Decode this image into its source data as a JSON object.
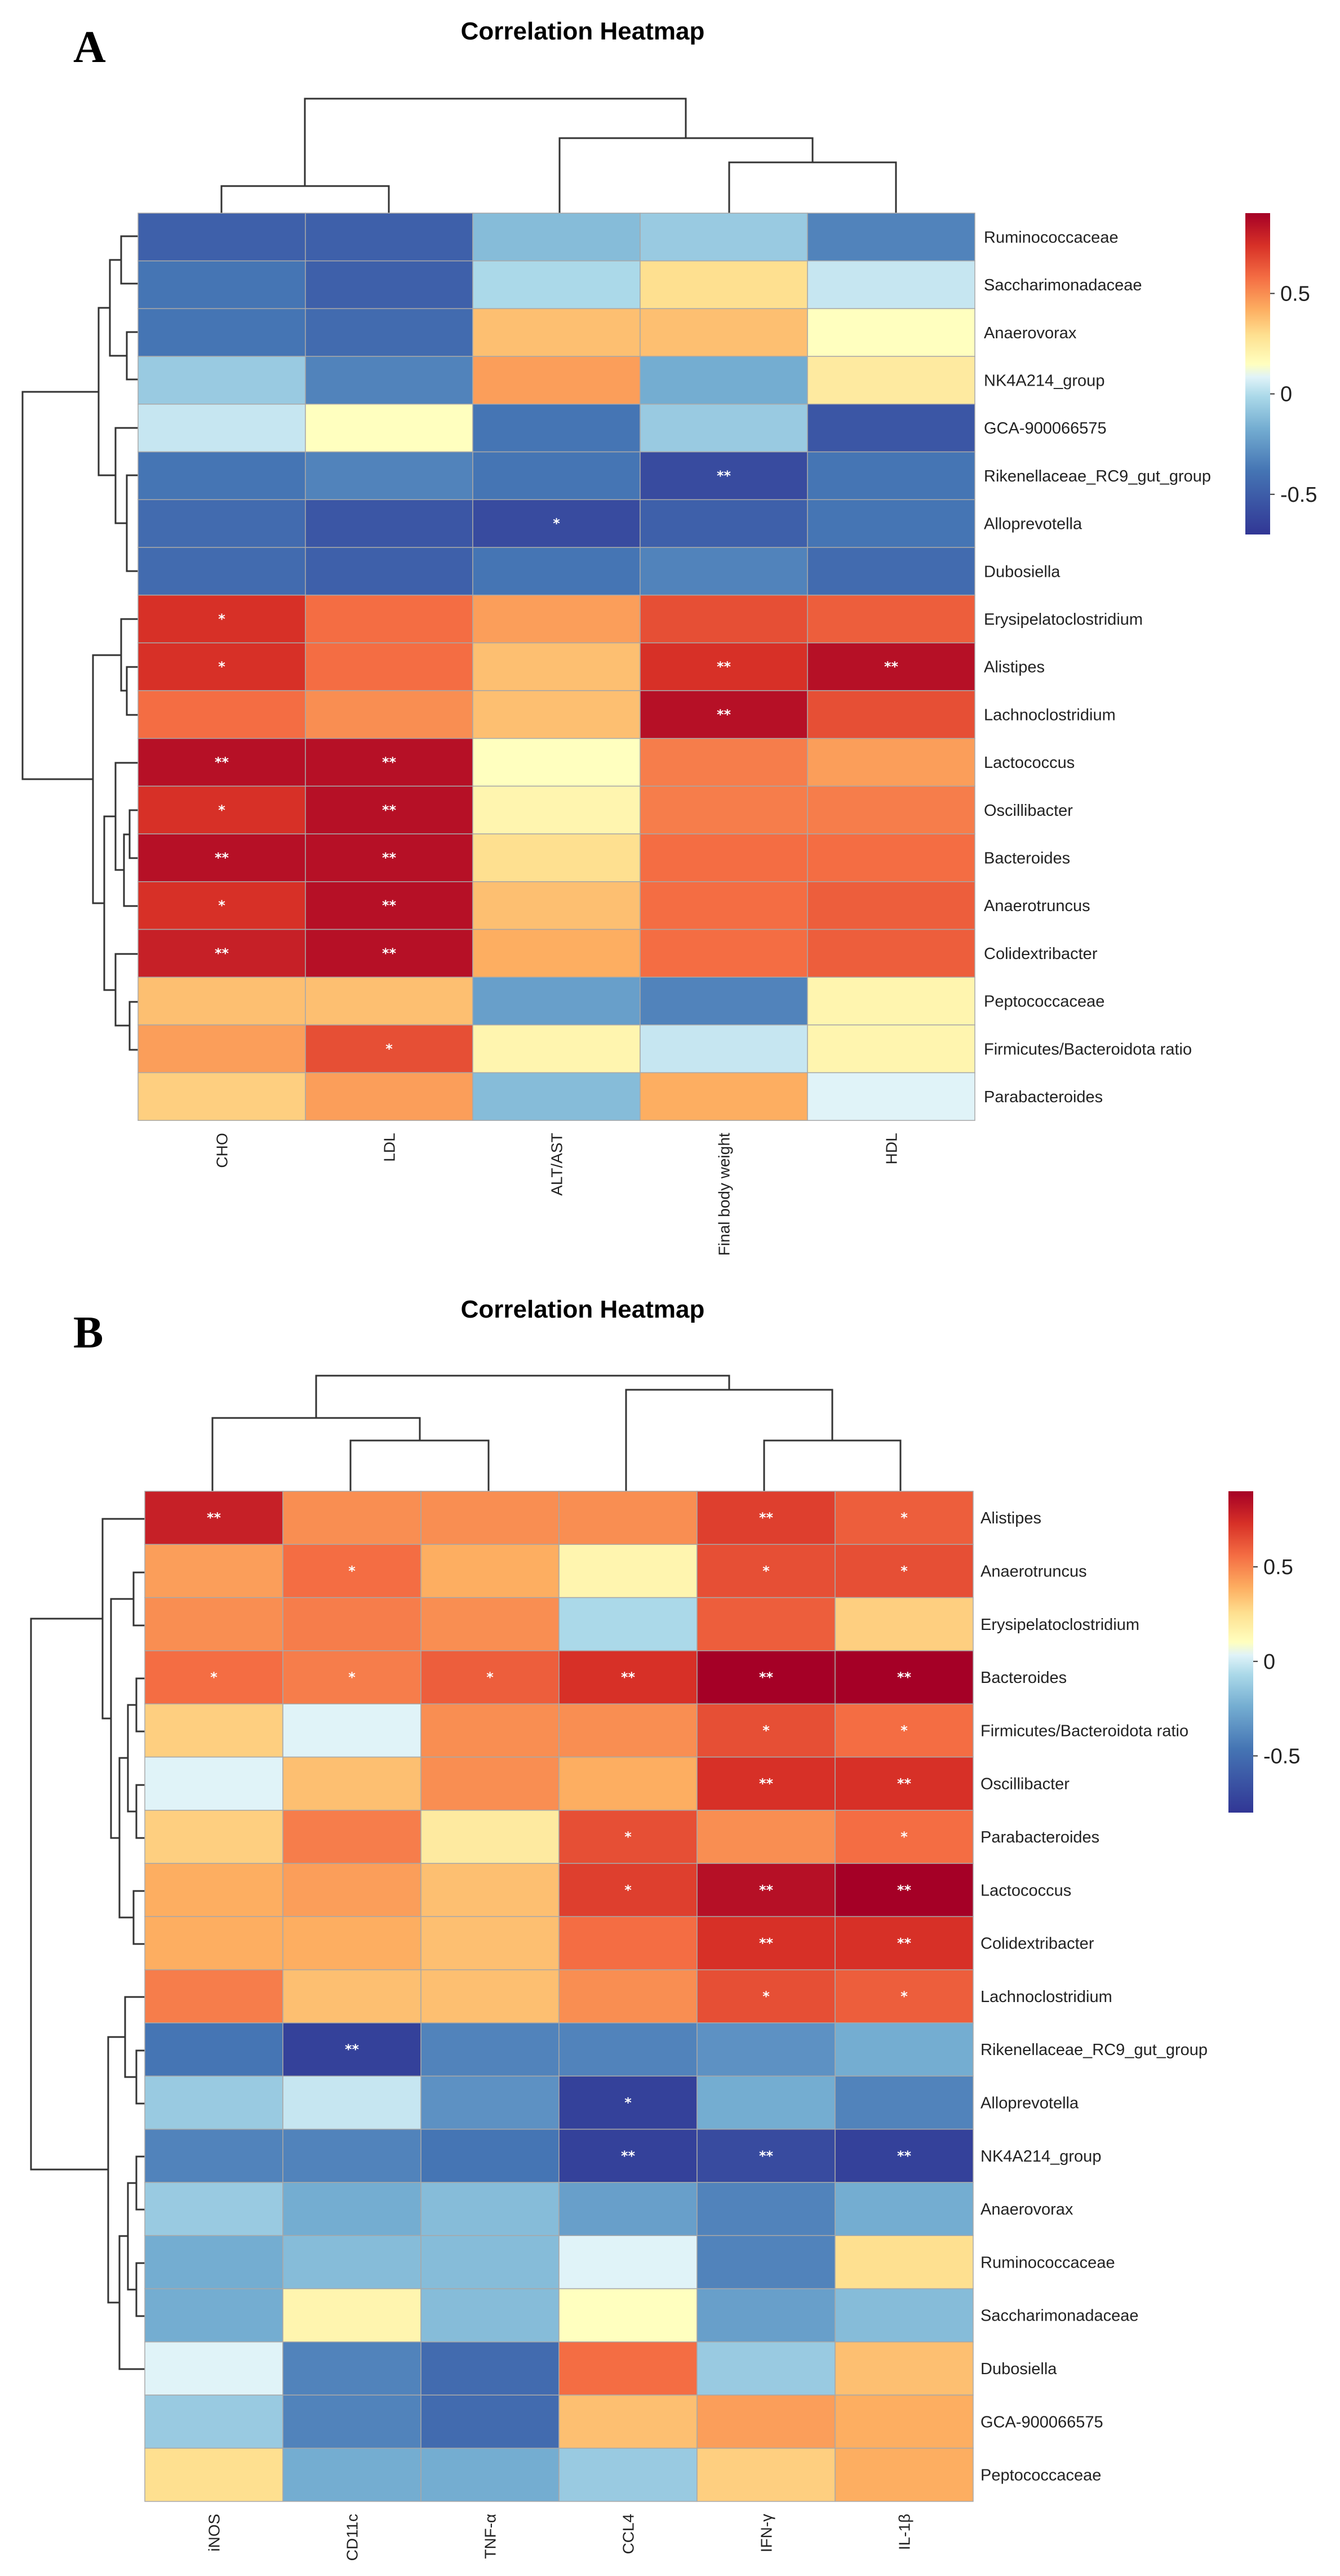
{
  "chart_data": [
    {
      "panel_label": "A",
      "type": "heatmap",
      "title": "Correlation Heatmap",
      "columns": [
        "CHO",
        "LDL",
        "ALT/AST",
        "Final body weight",
        "HDL"
      ],
      "rows": [
        "Ruminococcaceae",
        "Saccharimonadaceae",
        "Anaerovorax",
        "NK4A214_group",
        "GCA-900066575",
        "Rikenellaceae_RC9_gut_group",
        "Alloprevotella",
        "Dubosiella",
        "Erysipelatoclostridium",
        "Alistipes",
        "Lachnoclostridium",
        "Lactococcus",
        "Oscillibacter",
        "Bacteroides",
        "Anaerotruncus",
        "Colidextribacter",
        "Peptococcaceae",
        "Firmicutes/Bacteroidota ratio",
        "Parabacteroides"
      ],
      "values": [
        [
          -0.6,
          -0.6,
          -0.25,
          -0.2,
          -0.45
        ],
        [
          -0.5,
          -0.6,
          -0.15,
          0.2,
          -0.1
        ],
        [
          -0.5,
          -0.55,
          0.3,
          0.3,
          0.05
        ],
        [
          -0.2,
          -0.45,
          0.4,
          -0.3,
          0.15
        ],
        [
          -0.1,
          0.05,
          -0.5,
          -0.2,
          -0.65
        ],
        [
          -0.5,
          -0.45,
          -0.5,
          -0.7,
          -0.5
        ],
        [
          -0.55,
          -0.65,
          -0.7,
          -0.6,
          -0.5
        ],
        [
          -0.55,
          -0.6,
          -0.5,
          -0.45,
          -0.55
        ],
        [
          0.75,
          0.55,
          0.4,
          0.65,
          0.6
        ],
        [
          0.75,
          0.55,
          0.3,
          0.75,
          0.85
        ],
        [
          0.55,
          0.45,
          0.3,
          0.85,
          0.65
        ],
        [
          0.85,
          0.85,
          0.05,
          0.5,
          0.4
        ],
        [
          0.75,
          0.85,
          0.1,
          0.5,
          0.5
        ],
        [
          0.85,
          0.85,
          0.2,
          0.55,
          0.55
        ],
        [
          0.75,
          0.85,
          0.3,
          0.55,
          0.6
        ],
        [
          0.8,
          0.85,
          0.35,
          0.55,
          0.6
        ],
        [
          0.3,
          0.3,
          -0.35,
          -0.45,
          0.1
        ],
        [
          0.4,
          0.65,
          0.1,
          -0.1,
          0.1
        ],
        [
          0.25,
          0.4,
          -0.25,
          0.35,
          -0.05
        ]
      ],
      "significance": [
        [
          "",
          "",
          "",
          "",
          ""
        ],
        [
          "",
          "",
          "",
          "",
          ""
        ],
        [
          "",
          "",
          "",
          "",
          ""
        ],
        [
          "",
          "",
          "",
          "",
          ""
        ],
        [
          "",
          "",
          "",
          "",
          ""
        ],
        [
          "",
          "",
          "",
          "**",
          ""
        ],
        [
          "",
          "",
          "*",
          "",
          ""
        ],
        [
          "",
          "",
          "",
          "",
          ""
        ],
        [
          "*",
          "",
          "",
          "",
          ""
        ],
        [
          "*",
          "",
          "",
          "**",
          "**"
        ],
        [
          "",
          "",
          "",
          "**",
          ""
        ],
        [
          "**",
          "**",
          "",
          "",
          ""
        ],
        [
          "*",
          "**",
          "",
          "",
          ""
        ],
        [
          "**",
          "**",
          "",
          "",
          ""
        ],
        [
          "*",
          "**",
          "",
          "",
          ""
        ],
        [
          "**",
          "**",
          "",
          "",
          ""
        ],
        [
          "",
          "",
          "",
          "",
          ""
        ],
        [
          "",
          "*",
          "",
          "",
          ""
        ],
        [
          "",
          "",
          "",
          "",
          ""
        ]
      ],
      "legend": {
        "ticks": [
          0.5,
          0,
          -0.5
        ],
        "tick_labels": [
          "0.5",
          "0",
          "-0.5"
        ],
        "range": [
          -0.7,
          0.9
        ]
      }
    },
    {
      "panel_label": "B",
      "type": "heatmap",
      "title": "Correlation Heatmap",
      "columns": [
        "iNOS",
        "CD11c",
        "TNF-α",
        "CCL4",
        "IFN-γ",
        "IL-1β"
      ],
      "rows": [
        "Alistipes",
        "Anaerotruncus",
        "Erysipelatoclostridium",
        "Bacteroides",
        "Firmicutes/Bacteroidota ratio",
        "Oscillibacter",
        "Parabacteroides",
        "Lactococcus",
        "Colidextribacter",
        "Lachnoclostridium",
        "Rikenellaceae_RC9_gut_group",
        "Alloprevotella",
        "NK4A214_group",
        "Anaerovorax",
        "Ruminococcaceae",
        "Saccharimonadaceae",
        "Dubosiella",
        "GCA-900066575",
        "Peptococcaceae"
      ],
      "values": [
        [
          0.8,
          0.45,
          0.45,
          0.45,
          0.7,
          0.6
        ],
        [
          0.4,
          0.55,
          0.35,
          0.1,
          0.65,
          0.65
        ],
        [
          0.45,
          0.5,
          0.45,
          -0.15,
          0.6,
          0.25
        ],
        [
          0.55,
          0.5,
          0.6,
          0.75,
          0.9,
          0.9
        ],
        [
          0.25,
          -0.05,
          0.45,
          0.45,
          0.65,
          0.55
        ],
        [
          -0.05,
          0.3,
          0.45,
          0.35,
          0.75,
          0.75
        ],
        [
          0.25,
          0.5,
          0.15,
          0.65,
          0.45,
          0.55
        ],
        [
          0.35,
          0.4,
          0.3,
          0.7,
          0.85,
          0.9
        ],
        [
          0.35,
          0.35,
          0.3,
          0.55,
          0.75,
          0.75
        ],
        [
          0.5,
          0.3,
          0.3,
          0.45,
          0.65,
          0.6
        ],
        [
          -0.5,
          -0.75,
          -0.45,
          -0.45,
          -0.4,
          -0.3
        ],
        [
          -0.2,
          -0.1,
          -0.4,
          -0.75,
          -0.3,
          -0.45
        ],
        [
          -0.45,
          -0.45,
          -0.5,
          -0.75,
          -0.7,
          -0.75
        ],
        [
          -0.2,
          -0.3,
          -0.25,
          -0.35,
          -0.45,
          -0.3
        ],
        [
          -0.3,
          -0.25,
          -0.25,
          -0.05,
          -0.45,
          0.2
        ],
        [
          -0.3,
          0.1,
          -0.25,
          0.05,
          -0.35,
          -0.25
        ],
        [
          -0.05,
          -0.45,
          -0.55,
          0.55,
          -0.2,
          0.3
        ],
        [
          -0.2,
          -0.45,
          -0.55,
          0.3,
          0.4,
          0.35
        ],
        [
          0.2,
          -0.3,
          -0.3,
          -0.2,
          0.25,
          0.35
        ]
      ],
      "significance": [
        [
          "**",
          "",
          "",
          "",
          "**",
          "*"
        ],
        [
          "",
          "*",
          "",
          "",
          "*",
          "*"
        ],
        [
          "",
          "",
          "",
          "",
          "",
          ""
        ],
        [
          "*",
          "*",
          "*",
          "**",
          "**",
          "**"
        ],
        [
          "",
          "",
          "",
          "",
          "*",
          "*"
        ],
        [
          "",
          "",
          "",
          "",
          "**",
          "**"
        ],
        [
          "",
          "",
          "",
          "*",
          "",
          "*"
        ],
        [
          "",
          "",
          "",
          "*",
          "**",
          "**"
        ],
        [
          "",
          "",
          "",
          "",
          "**",
          "**"
        ],
        [
          "",
          "",
          "",
          "",
          "*",
          "*"
        ],
        [
          "",
          "**",
          "",
          "",
          "",
          ""
        ],
        [
          "",
          "",
          "",
          "*",
          "",
          ""
        ],
        [
          "",
          "",
          "",
          "**",
          "**",
          "**"
        ],
        [
          "",
          "",
          "",
          "",
          "",
          ""
        ],
        [
          "",
          "",
          "",
          "",
          "",
          ""
        ],
        [
          "",
          "",
          "",
          "",
          "",
          ""
        ],
        [
          "",
          "",
          "",
          "",
          "",
          ""
        ],
        [
          "",
          "",
          "",
          "",
          "",
          ""
        ],
        [
          "",
          "",
          "",
          "",
          "",
          ""
        ]
      ],
      "legend": {
        "ticks": [
          0.5,
          0,
          -0.5
        ],
        "tick_labels": [
          "0.5",
          "0",
          "-0.5"
        ],
        "range": [
          -0.8,
          0.9
        ]
      }
    }
  ]
}
